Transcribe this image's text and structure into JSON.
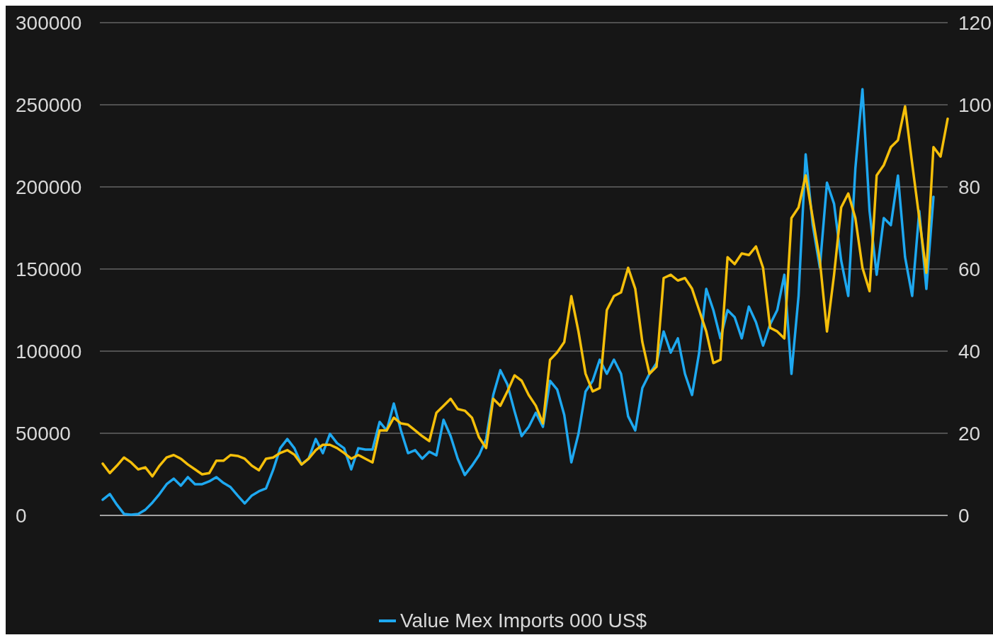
{
  "chart_data": {
    "type": "line",
    "categories": [
      null,
      null,
      null,
      null,
      null,
      null,
      null,
      null,
      null,
      null,
      null,
      null,
      null,
      null,
      null,
      null,
      null,
      null,
      null,
      null,
      null,
      null,
      null,
      null,
      null,
      null,
      null,
      null,
      null,
      null,
      null,
      null,
      null,
      null,
      null,
      null,
      null,
      null,
      null,
      null,
      null,
      null,
      null,
      null,
      null,
      null,
      null,
      null,
      null,
      null,
      null,
      null,
      null,
      null,
      null,
      null,
      null,
      null,
      null,
      null,
      null,
      null,
      null,
      null,
      null,
      null,
      null,
      null,
      null,
      null,
      null,
      null,
      null,
      null,
      null,
      null,
      null,
      null,
      null,
      null,
      null,
      null,
      null,
      null,
      null,
      null,
      null,
      null,
      null,
      null,
      null,
      null,
      null,
      null,
      null,
      null,
      null,
      null,
      null,
      null,
      null,
      null,
      null,
      null,
      null,
      null,
      null,
      null,
      null,
      null,
      null,
      null,
      null,
      null,
      null,
      null,
      null,
      null,
      null,
      null
    ],
    "series": [
      {
        "name": "Value Mex Imports 000 US$",
        "color": "#1ea8f0",
        "values": [
          9500,
          13000,
          6500,
          900,
          400,
          900,
          3400,
          7800,
          13000,
          19000,
          22400,
          18100,
          23300,
          19000,
          19000,
          20700,
          23300,
          19800,
          17200,
          12100,
          7300,
          12100,
          14700,
          16400,
          27600,
          40900,
          46500,
          40900,
          31000,
          34500,
          46500,
          37900,
          49600,
          44000,
          40900,
          28000,
          40900,
          40100,
          40100,
          56900,
          51700,
          68100,
          51700,
          37900,
          39700,
          34500,
          38800,
          36600,
          58200,
          48300,
          34500,
          24600,
          30200,
          36600,
          46500,
          73300,
          88400,
          79700,
          63400,
          48300,
          53900,
          62500,
          53900,
          81900,
          76700,
          61200,
          32300,
          49600,
          75400,
          81900,
          94800,
          86200,
          94800,
          86200,
          60300,
          51700,
          77600,
          86200,
          92700,
          112000,
          99100,
          107800,
          86200,
          73300,
          99100,
          137900,
          125000,
          107800,
          125000,
          120700,
          107800,
          127100,
          117700,
          103400,
          116400,
          125000,
          146500,
          86200,
          133600,
          219800,
          176700,
          150900,
          202600,
          189700,
          155200,
          133600,
          211200,
          259500,
          185300,
          146500,
          181000,
          176700,
          206900,
          157300,
          133600,
          185300,
          137900,
          194000,
          null,
          null
        ]
      },
      {
        "color": "#f5bf0a",
        "axis": "y2",
        "values": [
          12.6,
          10.3,
          12.1,
          14.1,
          12.9,
          11.2,
          11.7,
          9.5,
          12.1,
          14.1,
          14.7,
          13.8,
          12.4,
          11.2,
          10.0,
          10.3,
          13.3,
          13.3,
          14.7,
          14.5,
          13.8,
          12.1,
          11.0,
          13.8,
          14.1,
          15.2,
          15.9,
          14.8,
          12.4,
          13.8,
          15.9,
          17.2,
          17.2,
          16.4,
          15.2,
          13.8,
          14.7,
          13.8,
          12.9,
          20.7,
          20.7,
          23.8,
          22.4,
          22.1,
          20.7,
          19.3,
          18.1,
          25.0,
          26.7,
          28.4,
          25.9,
          25.5,
          23.8,
          19.0,
          16.4,
          28.4,
          26.7,
          30.2,
          34.1,
          32.8,
          29.3,
          26.7,
          22.4,
          37.9,
          39.7,
          42.2,
          53.4,
          44.8,
          34.5,
          30.2,
          31.0,
          50.0,
          53.4,
          54.3,
          60.3,
          55.2,
          42.2,
          34.5,
          36.2,
          57.8,
          58.6,
          57.2,
          57.8,
          55.2,
          50.0,
          44.8,
          37.1,
          37.9,
          62.9,
          61.2,
          63.8,
          63.4,
          65.5,
          60.3,
          45.7,
          44.8,
          43.1,
          72.4,
          75.0,
          82.8,
          72.4,
          62.1,
          44.8,
          58.6,
          75.0,
          78.4,
          72.4,
          60.3,
          54.6,
          82.8,
          85.3,
          89.7,
          91.4,
          99.6,
          85.7,
          72.4,
          59.1,
          89.7,
          87.4,
          96.6
        ]
      }
    ],
    "ylim": [
      0,
      300000
    ],
    "yticks": [
      0,
      50000,
      100000,
      150000,
      200000,
      250000,
      300000
    ],
    "y2lim": [
      0,
      120
    ],
    "y2ticks": [
      0,
      20,
      40,
      60,
      80,
      100,
      120
    ],
    "grid": "y",
    "legend": "bottom"
  }
}
